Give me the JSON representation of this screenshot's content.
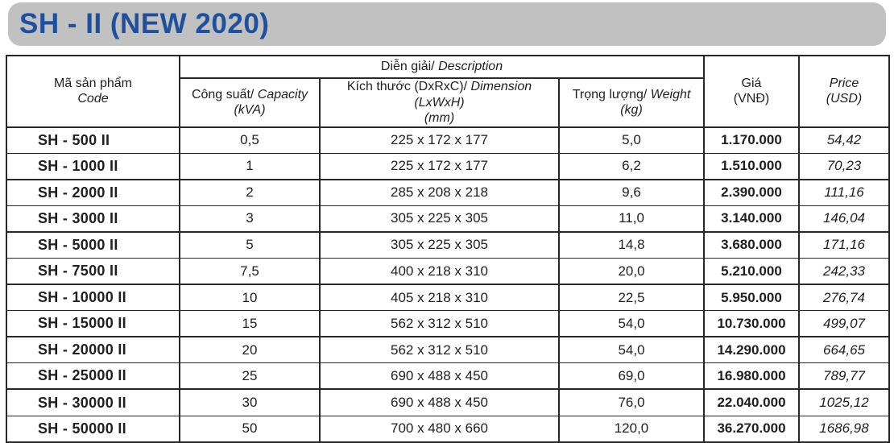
{
  "title": "SH - II (NEW 2020)",
  "colors": {
    "title_text": "#1d519f",
    "title_bar_bg": "#c1c1c1",
    "grid_line": "#282828",
    "body_text": "#1f1f1f"
  },
  "table": {
    "headers": {
      "code_vi": "Mã sản phẩm",
      "code_en": "Code",
      "description_vi": "Diễn giải/",
      "description_en": "Description",
      "capacity_vi": "Công suất/",
      "capacity_en": "Capacity",
      "capacity_unit": "(kVA)",
      "dimension_vi": "Kích thước (DxRxC)/",
      "dimension_en": "Dimension (LxWxH)",
      "dimension_unit": "(mm)",
      "weight_vi": "Trọng lượng/",
      "weight_en": "Weight (kg)",
      "price_vnd_label": "Giá",
      "price_vnd_unit": "(VNĐ)",
      "price_usd_label": "Price",
      "price_usd_unit": "(USD)"
    },
    "rows": [
      {
        "code": "SH - 500 II",
        "capacity": "0,5",
        "dimension": "225 x 172 x 177",
        "weight": "5,0",
        "price_vnd": "1.170.000",
        "price_usd": "54,42"
      },
      {
        "code": "SH - 1000 II",
        "capacity": "1",
        "dimension": "225 x 172 x 177",
        "weight": "6,2",
        "price_vnd": "1.510.000",
        "price_usd": "70,23"
      },
      {
        "code": "SH - 2000 II",
        "capacity": "2",
        "dimension": "285 x 208 x 218",
        "weight": "9,6",
        "price_vnd": "2.390.000",
        "price_usd": "111,16"
      },
      {
        "code": "SH - 3000 II",
        "capacity": "3",
        "dimension": "305 x 225 x 305",
        "weight": "11,0",
        "price_vnd": "3.140.000",
        "price_usd": "146,04"
      },
      {
        "code": "SH - 5000 II",
        "capacity": "5",
        "dimension": "305 x 225 x 305",
        "weight": "14,8",
        "price_vnd": "3.680.000",
        "price_usd": "171,16"
      },
      {
        "code": "SH - 7500 II",
        "capacity": "7,5",
        "dimension": "400 x 218 x 310",
        "weight": "20,0",
        "price_vnd": "5.210.000",
        "price_usd": "242,33"
      },
      {
        "code": "SH - 10000 II",
        "capacity": "10",
        "dimension": "405 x 218 x 310",
        "weight": "22,5",
        "price_vnd": "5.950.000",
        "price_usd": "276,74"
      },
      {
        "code": "SH - 15000 II",
        "capacity": "15",
        "dimension": "562 x 312 x 510",
        "weight": "54,0",
        "price_vnd": "10.730.000",
        "price_usd": "499,07"
      },
      {
        "code": "SH - 20000 II",
        "capacity": "20",
        "dimension": "562 x 312 x 510",
        "weight": "54,0",
        "price_vnd": "14.290.000",
        "price_usd": "664,65"
      },
      {
        "code": "SH - 25000 II",
        "capacity": "25",
        "dimension": "690 x 488 x 450",
        "weight": "69,0",
        "price_vnd": "16.980.000",
        "price_usd": "789,77"
      },
      {
        "code": "SH - 30000 II",
        "capacity": "30",
        "dimension": "690 x 488 x 450",
        "weight": "76,0",
        "price_vnd": "22.040.000",
        "price_usd": "1025,12"
      },
      {
        "code": "SH - 50000 II",
        "capacity": "50",
        "dimension": "700 x 480 x 660",
        "weight": "120,0",
        "price_vnd": "36.270.000",
        "price_usd": "1686,98"
      }
    ]
  }
}
